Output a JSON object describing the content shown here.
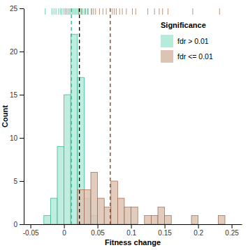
{
  "chart_data": {
    "type": "histogram",
    "x_label": "Fitness change",
    "y_label": "Count",
    "bins": [
      -0.04,
      -0.03,
      -0.02,
      -0.01,
      0.0,
      0.01,
      0.02,
      0.03,
      0.04,
      0.05,
      0.06,
      0.07,
      0.08,
      0.09,
      0.1,
      0.11,
      0.12,
      0.13,
      0.14,
      0.15,
      0.16,
      0.17,
      0.18,
      0.19,
      0.2,
      0.21,
      0.22,
      0.23,
      0.24
    ],
    "series": [
      {
        "name": "fdr > 0.01",
        "color": "#2fb38a",
        "values": [
          0,
          1,
          3,
          9,
          15,
          22,
          17,
          3,
          1,
          0,
          0,
          0,
          0,
          0,
          0,
          0,
          0,
          0,
          0,
          0,
          0,
          0,
          0,
          0,
          0,
          0,
          0,
          0
        ],
        "rug": [
          -0.028,
          -0.018,
          -0.015,
          -0.012,
          -0.008,
          -0.005,
          -0.003,
          0.0,
          0.002,
          0.004,
          0.006,
          0.008,
          0.01,
          0.012,
          0.014,
          0.016,
          0.018,
          0.02,
          0.022,
          0.024,
          0.026,
          0.028,
          0.032,
          0.036,
          0.041
        ]
      },
      {
        "name": "fdr <= 0.01",
        "color": "#a0664a",
        "values": [
          0,
          0,
          0,
          0,
          0,
          0,
          4,
          4,
          6,
          3,
          2,
          5,
          3,
          2,
          2,
          0,
          1,
          1,
          2,
          1,
          0,
          0,
          0,
          1,
          0,
          0,
          0,
          1
        ],
        "rug": [
          0.022,
          0.026,
          0.031,
          0.035,
          0.041,
          0.044,
          0.047,
          0.053,
          0.058,
          0.063,
          0.072,
          0.075,
          0.078,
          0.083,
          0.087,
          0.093,
          0.102,
          0.107,
          0.125,
          0.135,
          0.142,
          0.147,
          0.155,
          0.192,
          0.232
        ]
      }
    ],
    "reference_lines": [
      {
        "value": 0.011,
        "color": "#2fb38a"
      },
      {
        "value": 0.023,
        "color": "#000000"
      },
      {
        "value": 0.069,
        "color": "#7a3b1a"
      }
    ],
    "line_style": "dashed",
    "legend_title": "Significance",
    "legend": "top-right",
    "xlim": [
      -0.06,
      0.265
    ],
    "xticks": [
      -0.05,
      0,
      0.05,
      0.1,
      0.15,
      0.2,
      0.25
    ],
    "ylim": [
      0,
      25
    ],
    "yticks": [
      0,
      5,
      10,
      15,
      20,
      25
    ],
    "grid": false
  }
}
